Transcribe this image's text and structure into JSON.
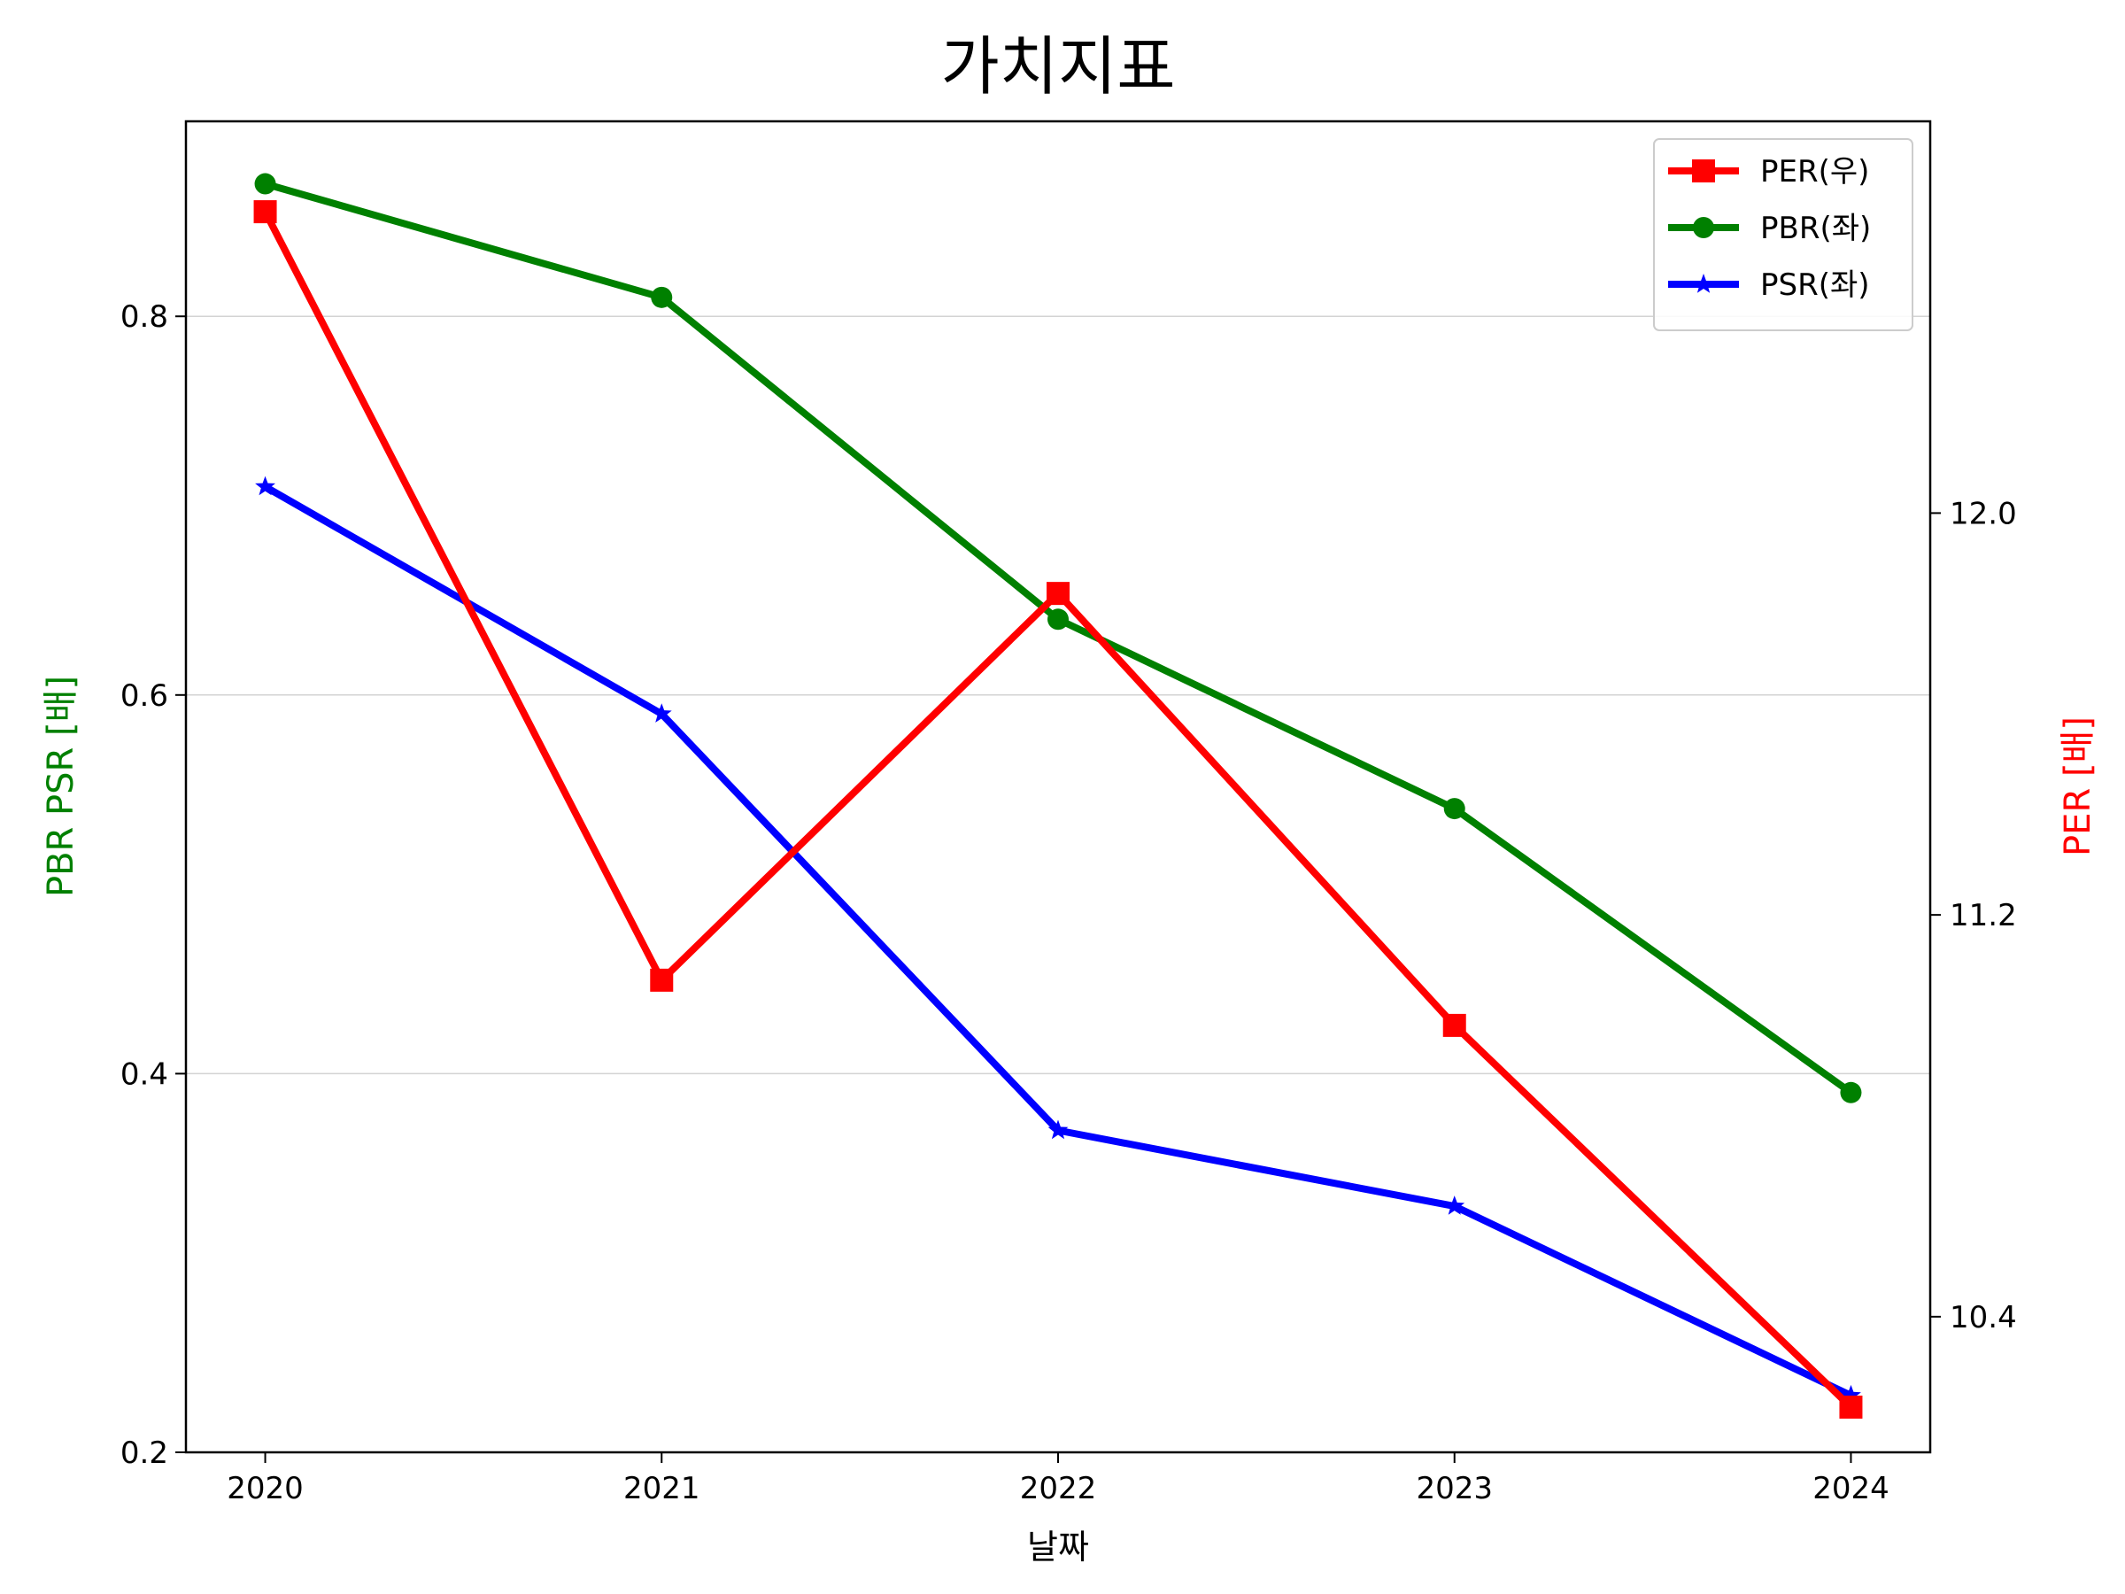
{
  "chart_data": {
    "type": "line",
    "title": "가치지표",
    "xlabel": "날짜",
    "ylabel_left": "PBR PSR [배]",
    "ylabel_right": "PER [배]",
    "x": [
      "2020",
      "2021",
      "2022",
      "2023",
      "2024"
    ],
    "xlim": [
      2019.8,
      2024.2
    ],
    "ylim_left": [
      0.2,
      0.903
    ],
    "ylim_right": [
      10.13,
      12.78
    ],
    "yticks_left": [
      0.2,
      0.4,
      0.6,
      0.8
    ],
    "yticks_right": [
      10.4,
      11.2,
      12.0
    ],
    "ytick_labels_left": [
      "0.2",
      "0.4",
      "0.6",
      "0.8"
    ],
    "ytick_labels_right": [
      "10.4",
      "11.2",
      "12.0"
    ],
    "grid": "horizontal",
    "legend_position": "top-right",
    "series": [
      {
        "name": "PER(우)",
        "axis": "right",
        "color": "#ff0000",
        "marker": "square",
        "values": [
          12.6,
          11.07,
          11.84,
          10.98,
          10.22
        ]
      },
      {
        "name": "PBR(좌)",
        "axis": "left",
        "color": "#008000",
        "marker": "circle",
        "values": [
          0.87,
          0.81,
          0.64,
          0.54,
          0.39
        ]
      },
      {
        "name": "PSR(좌)",
        "axis": "left",
        "color": "#0000ff",
        "marker": "star",
        "values": [
          0.71,
          0.59,
          0.37,
          0.33,
          0.23
        ]
      }
    ]
  }
}
